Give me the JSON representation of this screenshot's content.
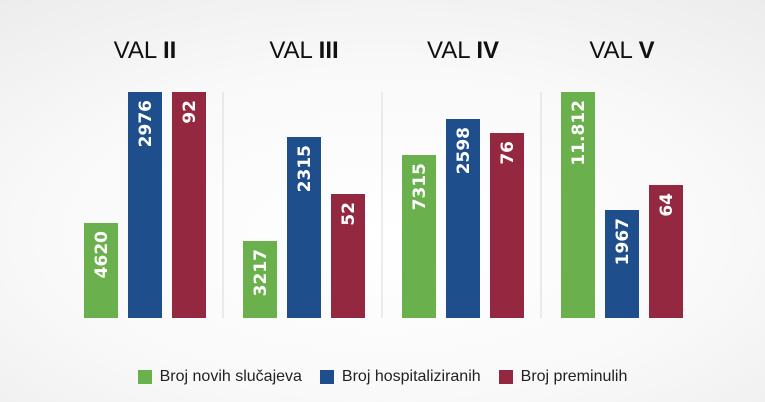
{
  "colors": {
    "new_cases": "#6ab04c",
    "hospitalized": "#1f4e8c",
    "deaths": "#952841",
    "divider": "#d9d9d9"
  },
  "chart_data": {
    "type": "bar",
    "title": "",
    "xlabel": "",
    "ylabel": "",
    "grid": false,
    "legend_placement": "bottom-center",
    "note": "Each group uses its own independent scale; bar heights are normalized per group.",
    "groups": [
      {
        "prefix": "VAL ",
        "numeral": "II",
        "values": [
          4620,
          2976,
          92
        ],
        "labels": [
          "4620",
          "2976",
          "92"
        ],
        "height_fraction": [
          0.42,
          1.0,
          1.0
        ]
      },
      {
        "prefix": "VAL ",
        "numeral": "III",
        "values": [
          3217,
          2315,
          52
        ],
        "labels": [
          "3217",
          "2315",
          "52"
        ],
        "height_fraction": [
          0.34,
          0.8,
          0.55
        ]
      },
      {
        "prefix": "VAL ",
        "numeral": "IV",
        "values": [
          7315,
          2598,
          76
        ],
        "labels": [
          "7315",
          "2598",
          "76"
        ],
        "height_fraction": [
          0.72,
          0.88,
          0.82
        ]
      },
      {
        "prefix": "VAL ",
        "numeral": "V",
        "values": [
          11812,
          1967,
          64
        ],
        "labels": [
          "11.812",
          "1967",
          "64"
        ],
        "height_fraction": [
          1.0,
          0.48,
          0.59
        ]
      }
    ],
    "series": [
      {
        "name": "Broj novih slučajeva",
        "color": "#6ab04c"
      },
      {
        "name": "Broj hospitaliziranih",
        "color": "#1f4e8c"
      },
      {
        "name": "Broj preminulih",
        "color": "#952841"
      }
    ]
  }
}
